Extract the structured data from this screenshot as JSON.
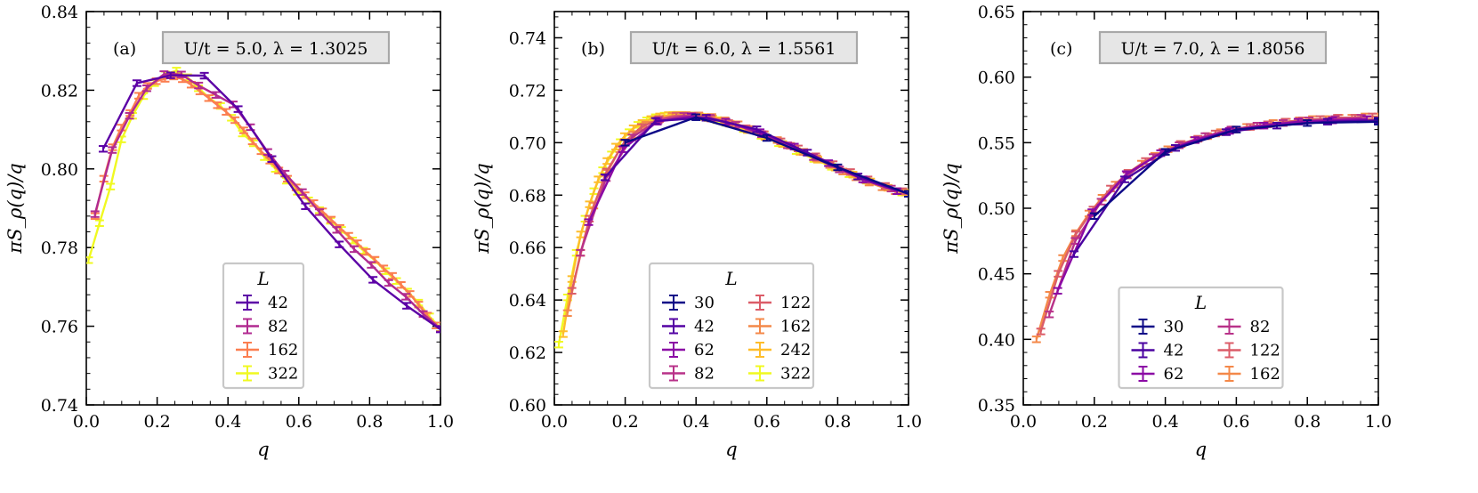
{
  "chart_data": [
    {
      "type": "line",
      "panel": "(a)",
      "annotation": "U/t = 5.0, λ = 1.3025",
      "xlabel": "q",
      "ylabel": "πS_ρ(q)/q",
      "xlim": [
        0.0,
        1.0
      ],
      "ylim": [
        0.74,
        0.84
      ],
      "xticks": [
        0.0,
        0.2,
        0.4,
        0.6,
        0.8,
        1.0
      ],
      "yticks": [
        0.74,
        0.76,
        0.78,
        0.8,
        0.82,
        0.84
      ],
      "xtick_labels": [
        "0.0",
        "0.2",
        "0.4",
        "0.6",
        "0.8",
        "1.0"
      ],
      "ytick_labels": [
        "0.74",
        "0.76",
        "0.78",
        "0.80",
        "0.82",
        "0.84"
      ],
      "legend_title": "L",
      "legend_columns": 1,
      "legend_position": "lower-center",
      "series": [
        {
          "name": "42",
          "color": "#5c01a6",
          "x": [
            0.0476,
            0.1429,
            0.2381,
            0.3333,
            0.4286,
            0.5238,
            0.619,
            0.7143,
            0.8095,
            0.9048,
            1.0
          ],
          "y": [
            0.8051,
            0.8218,
            0.8238,
            0.8237,
            0.8152,
            0.8025,
            0.7905,
            0.7808,
            0.7718,
            0.7652,
            0.7592
          ]
        },
        {
          "name": "82",
          "color": "#b12a90",
          "x": [
            0.0244,
            0.0732,
            0.122,
            0.1707,
            0.2195,
            0.2683,
            0.3171,
            0.3659,
            0.4146,
            0.4634,
            0.5122,
            0.561,
            0.6098,
            0.6585,
            0.7073,
            0.7561,
            0.8049,
            0.8537,
            0.9024,
            0.9512,
            1.0
          ],
          "y": [
            0.7885,
            0.8048,
            0.8135,
            0.8205,
            0.8241,
            0.824,
            0.8212,
            0.8188,
            0.8164,
            0.8106,
            0.8043,
            0.7988,
            0.7941,
            0.789,
            0.7845,
            0.7796,
            0.7756,
            0.771,
            0.7675,
            0.7631,
            0.7594
          ]
        },
        {
          "name": "162",
          "color": "#fb7e50",
          "x": [
            0.0247,
            0.0494,
            0.0741,
            0.0988,
            0.1235,
            0.1481,
            0.1728,
            0.1975,
            0.2222,
            0.2469,
            0.2716,
            0.2963,
            0.321,
            0.3457,
            0.3704,
            0.3951,
            0.4198,
            0.4444,
            0.4691,
            0.4938,
            0.5185,
            0.5432,
            0.5679,
            0.5926,
            0.6173,
            0.642,
            0.6667,
            0.6914,
            0.716,
            0.7407,
            0.7654,
            0.7901,
            0.8148,
            0.8395,
            0.8642,
            0.8889,
            0.9136,
            0.9383,
            0.963,
            0.9877
          ],
          "y": [
            0.788,
            0.7975,
            0.8055,
            0.8105,
            0.8142,
            0.8186,
            0.8211,
            0.8223,
            0.8229,
            0.8235,
            0.8228,
            0.8214,
            0.8197,
            0.818,
            0.8162,
            0.8145,
            0.8124,
            0.8098,
            0.807,
            0.8045,
            0.8021,
            0.7996,
            0.7975,
            0.7953,
            0.7933,
            0.7913,
            0.7892,
            0.7871,
            0.785,
            0.783,
            0.7811,
            0.7789,
            0.7769,
            0.7747,
            0.7728,
            0.7705,
            0.7682,
            0.7655,
            0.7627,
            0.7602
          ]
        },
        {
          "name": "322",
          "color": "#f0f921",
          "x": [
            0.0062,
            0.0373,
            0.0683,
            0.0994,
            0.1304,
            0.1615,
            0.1925,
            0.2236,
            0.2547,
            0.2857,
            0.3168,
            0.3478,
            0.3789,
            0.4099,
            0.441,
            0.472,
            0.5031,
            0.5342,
            0.5652,
            0.5963,
            0.6273,
            0.6584,
            0.6894,
            0.7205,
            0.7516,
            0.7826,
            0.8137,
            0.8447,
            0.8758,
            0.9068,
            0.9379,
            0.9689,
            1.0
          ],
          "y": [
            0.7768,
            0.7862,
            0.7955,
            0.8075,
            0.8135,
            0.8185,
            0.8218,
            0.824,
            0.825,
            0.8233,
            0.8205,
            0.818,
            0.816,
            0.813,
            0.809,
            0.8065,
            0.803,
            0.8,
            0.797,
            0.7942,
            0.792,
            0.7895,
            0.7868,
            0.7845,
            0.7818,
            0.7792,
            0.7768,
            0.774,
            0.7715,
            0.7688,
            0.766,
            0.7625,
            0.7595
          ]
        }
      ]
    },
    {
      "type": "line",
      "panel": "(b)",
      "annotation": "U/t = 6.0, λ = 1.5561",
      "xlabel": "q",
      "ylabel": "πS_ρ(q)/q",
      "xlim": [
        0.0,
        1.0
      ],
      "ylim": [
        0.6,
        0.75
      ],
      "xticks": [
        0.0,
        0.2,
        0.4,
        0.6,
        0.8,
        1.0
      ],
      "yticks": [
        0.6,
        0.62,
        0.64,
        0.66,
        0.68,
        0.7,
        0.72,
        0.74
      ],
      "xtick_labels": [
        "0.0",
        "0.2",
        "0.4",
        "0.6",
        "0.8",
        "1.0"
      ],
      "ytick_labels": [
        "0.60",
        "0.62",
        "0.64",
        "0.66",
        "0.68",
        "0.70",
        "0.72",
        "0.74"
      ],
      "legend_title": "L",
      "legend_columns": 2,
      "legend_position": "lower-center",
      "series": [
        {
          "name": "30",
          "color": "#0d0887",
          "x": [
            0.2,
            0.4,
            0.6,
            0.8,
            1.0
          ],
          "y": [
            0.7,
            0.7097,
            0.7018,
            0.6906,
            0.6805
          ]
        },
        {
          "name": "42",
          "color": "#5302a3",
          "x": [
            0.1429,
            0.2857,
            0.4286,
            0.5714,
            0.7143,
            0.8571,
            1.0
          ],
          "y": [
            0.6868,
            0.7083,
            0.7095,
            0.7051,
            0.6962,
            0.6871,
            0.6805
          ]
        },
        {
          "name": "62",
          "color": "#8b0aa5",
          "x": [
            0.0968,
            0.1935,
            0.2903,
            0.3871,
            0.4839,
            0.5806,
            0.6774,
            0.7742,
            0.871,
            0.9677
          ],
          "y": [
            0.6697,
            0.6975,
            0.708,
            0.71,
            0.708,
            0.704,
            0.6985,
            0.6922,
            0.686,
            0.6815
          ]
        },
        {
          "name": "82",
          "color": "#b83289",
          "x": [
            0.0732,
            0.1463,
            0.2195,
            0.2927,
            0.3659,
            0.439,
            0.5122,
            0.5854,
            0.6585,
            0.7317,
            0.8049,
            0.878,
            0.9512
          ],
          "y": [
            0.658,
            0.6865,
            0.702,
            0.7085,
            0.7102,
            0.7095,
            0.7068,
            0.7032,
            0.699,
            0.6945,
            0.6898,
            0.6858,
            0.6825
          ]
        },
        {
          "name": "122",
          "color": "#db5c68",
          "x": [
            0.0492,
            0.0984,
            0.1475,
            0.1967,
            0.2459,
            0.2951,
            0.3443,
            0.3934,
            0.4426,
            0.4918,
            0.541,
            0.5902,
            0.6393,
            0.6885,
            0.7377,
            0.7869,
            0.8361,
            0.8852,
            0.9344,
            0.9836
          ],
          "y": [
            0.6435,
            0.671,
            0.689,
            0.7,
            0.706,
            0.709,
            0.7103,
            0.7103,
            0.7092,
            0.7075,
            0.7055,
            0.7032,
            0.7005,
            0.6978,
            0.6948,
            0.6918,
            0.6888,
            0.686,
            0.6835,
            0.6815
          ]
        },
        {
          "name": "162",
          "color": "#f48849",
          "x": [
            0.037,
            0.0741,
            0.1111,
            0.1481,
            0.1852,
            0.2222,
            0.2593,
            0.2963,
            0.3333,
            0.3704,
            0.4074,
            0.4444,
            0.4815,
            0.5185,
            0.5556,
            0.5926,
            0.6296,
            0.6667,
            0.7037,
            0.7407,
            0.7778,
            0.8148,
            0.8519,
            0.8889,
            0.9259,
            0.963,
            1.0
          ],
          "y": [
            0.635,
            0.658,
            0.676,
            0.6885,
            0.6975,
            0.703,
            0.7068,
            0.709,
            0.7102,
            0.7105,
            0.7104,
            0.7098,
            0.7085,
            0.707,
            0.7052,
            0.7032,
            0.701,
            0.6988,
            0.6965,
            0.694,
            0.6915,
            0.689,
            0.6868,
            0.6848,
            0.683,
            0.6815,
            0.6805
          ]
        },
        {
          "name": "242",
          "color": "#febd2a",
          "x": [
            0.0248,
            0.0496,
            0.0744,
            0.0992,
            0.124,
            0.1488,
            0.1736,
            0.1983,
            0.2231,
            0.2479,
            0.2727,
            0.2975,
            0.3223,
            0.3471,
            0.3719,
            0.3967,
            0.4215,
            0.4463,
            0.4711,
            0.4959,
            0.5455,
            0.595,
            0.6446,
            0.6942,
            0.7438,
            0.7934,
            0.843,
            0.8926,
            0.9421,
            0.9917
          ],
          "y": [
            0.627,
            0.648,
            0.665,
            0.6765,
            0.686,
            0.693,
            0.6985,
            0.7025,
            0.7055,
            0.7075,
            0.709,
            0.71,
            0.7105,
            0.7106,
            0.7105,
            0.7102,
            0.7098,
            0.7092,
            0.7083,
            0.7072,
            0.7048,
            0.7022,
            0.6995,
            0.6965,
            0.6935,
            0.6905,
            0.6878,
            0.6852,
            0.6828,
            0.681
          ]
        },
        {
          "name": "322",
          "color": "#f0f921",
          "x": [
            0.0124,
            0.0373,
            0.0621,
            0.0869,
            0.1118,
            0.1366,
            0.1615,
            0.1863,
            0.2112,
            0.236,
            0.2609,
            0.2857,
            0.3106,
            0.3354,
            0.3602,
            0.3851,
            0.4099,
            0.4348,
            0.4596,
            0.4845,
            0.5342,
            0.5839,
            0.6335,
            0.6832,
            0.7329,
            0.7826,
            0.8323,
            0.882,
            0.9317,
            0.9814
          ],
          "y": [
            0.623,
            0.641,
            0.658,
            0.671,
            0.6815,
            0.6895,
            0.6955,
            0.7002,
            0.704,
            0.7068,
            0.7085,
            0.7097,
            0.7103,
            0.7106,
            0.7106,
            0.7104,
            0.71,
            0.7094,
            0.7086,
            0.7076,
            0.7052,
            0.7026,
            0.6998,
            0.6968,
            0.6938,
            0.6908,
            0.688,
            0.6855,
            0.683,
            0.681
          ]
        }
      ]
    },
    {
      "type": "line",
      "panel": "(c)",
      "annotation": "U/t = 7.0, λ = 1.8056",
      "xlabel": "q",
      "ylabel": "πS_ρ(q)/q",
      "xlim": [
        0.0,
        1.0
      ],
      "ylim": [
        0.35,
        0.65
      ],
      "xticks": [
        0.0,
        0.2,
        0.4,
        0.6,
        0.8,
        1.0
      ],
      "yticks": [
        0.35,
        0.4,
        0.45,
        0.5,
        0.55,
        0.6,
        0.65
      ],
      "xtick_labels": [
        "0.0",
        "0.2",
        "0.4",
        "0.6",
        "0.8",
        "1.0"
      ],
      "ytick_labels": [
        "0.35",
        "0.40",
        "0.45",
        "0.50",
        "0.55",
        "0.60",
        "0.65"
      ],
      "legend_title": "L",
      "legend_columns": 2,
      "legend_position": "lower-center",
      "series": [
        {
          "name": "30",
          "color": "#0d0887",
          "x": [
            0.2,
            0.4,
            0.6,
            0.8,
            1.0
          ],
          "y": [
            0.494,
            0.543,
            0.56,
            0.565,
            0.566
          ]
        },
        {
          "name": "42",
          "color": "#4a02a0",
          "x": [
            0.1429,
            0.2857,
            0.4286,
            0.5714,
            0.7143,
            0.8571,
            1.0
          ],
          "y": [
            0.465,
            0.522,
            0.546,
            0.558,
            0.563,
            0.566,
            0.567
          ]
        },
        {
          "name": "62",
          "color": "#8b0aa5",
          "x": [
            0.0968,
            0.1935,
            0.2903,
            0.3871,
            0.4839,
            0.5806,
            0.6774,
            0.7742,
            0.871,
            0.9677
          ],
          "y": [
            0.437,
            0.497,
            0.526,
            0.542,
            0.552,
            0.559,
            0.563,
            0.566,
            0.567,
            0.568
          ]
        },
        {
          "name": "82",
          "color": "#b83289",
          "x": [
            0.0732,
            0.1463,
            0.2195,
            0.2927,
            0.3659,
            0.439,
            0.5122,
            0.5854,
            0.6585,
            0.7317,
            0.8049,
            0.878,
            0.9512
          ],
          "y": [
            0.419,
            0.475,
            0.505,
            0.525,
            0.539,
            0.548,
            0.555,
            0.56,
            0.563,
            0.565,
            0.567,
            0.568,
            0.569
          ]
        },
        {
          "name": "122",
          "color": "#db5c68",
          "x": [
            0.0492,
            0.0984,
            0.1475,
            0.1967,
            0.2459,
            0.2951,
            0.3443,
            0.3934,
            0.4426,
            0.4918,
            0.541,
            0.5902,
            0.6393,
            0.6885,
            0.7377,
            0.7869,
            0.8361,
            0.8852,
            0.9344,
            0.9836
          ],
          "y": [
            0.406,
            0.45,
            0.48,
            0.499,
            0.515,
            0.527,
            0.536,
            0.543,
            0.549,
            0.553,
            0.557,
            0.56,
            0.562,
            0.564,
            0.566,
            0.567,
            0.568,
            0.569,
            0.569,
            0.57
          ]
        },
        {
          "name": "162",
          "color": "#f48849",
          "x": [
            0.037,
            0.0741,
            0.1111,
            0.1481,
            0.1852,
            0.2222,
            0.2593,
            0.2963,
            0.3333,
            0.3704,
            0.4074,
            0.4444,
            0.4815,
            0.5185,
            0.5556,
            0.5926,
            0.6296,
            0.6667,
            0.7037,
            0.7407,
            0.7778,
            0.8148,
            0.8519,
            0.8889,
            0.9259,
            0.963,
            1.0
          ],
          "y": [
            0.4,
            0.434,
            0.462,
            0.481,
            0.496,
            0.508,
            0.518,
            0.527,
            0.534,
            0.54,
            0.545,
            0.549,
            0.552,
            0.555,
            0.558,
            0.56,
            0.562,
            0.563,
            0.565,
            0.566,
            0.567,
            0.568,
            0.568,
            0.569,
            0.569,
            0.57,
            0.57
          ]
        }
      ]
    }
  ]
}
